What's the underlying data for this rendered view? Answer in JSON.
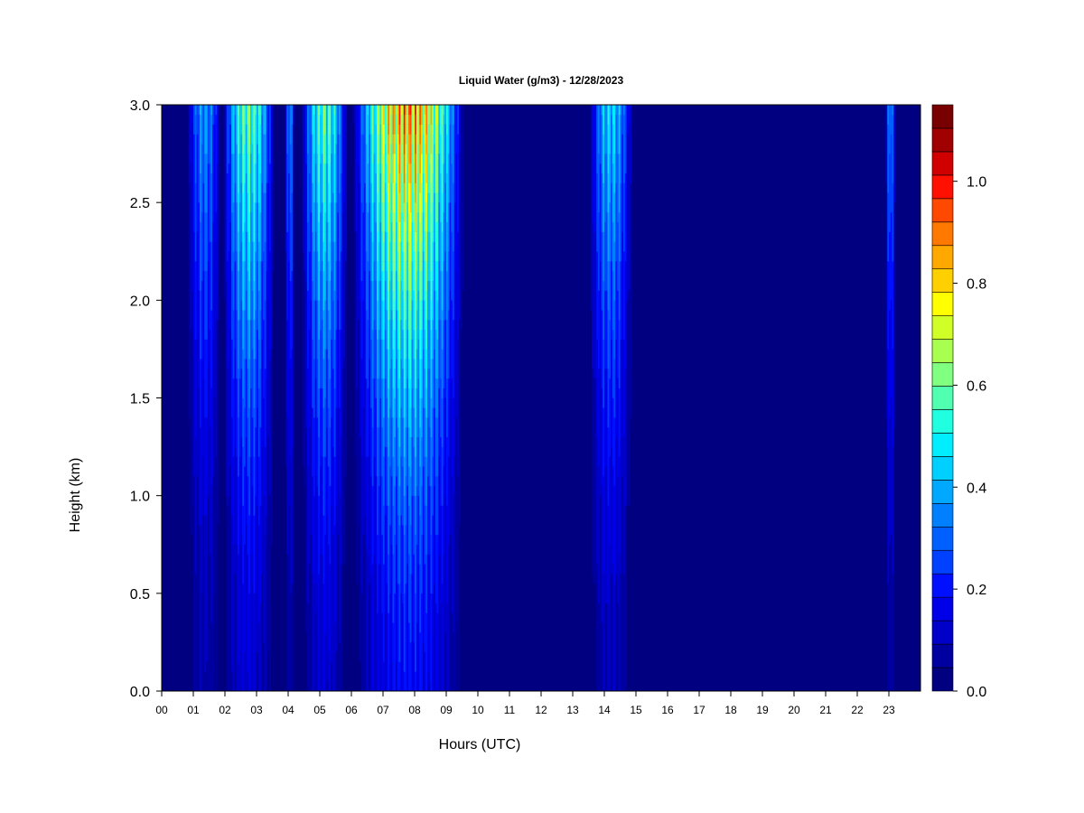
{
  "chart_data": {
    "type": "heatmap",
    "title": "Liquid Water (g/m3) - 12/28/2023",
    "xlabel": "Hours (UTC)",
    "ylabel": "Height (km)",
    "xlim": [
      0,
      24
    ],
    "ylim": [
      0,
      3.0
    ],
    "x_ticks": [
      "00",
      "01",
      "02",
      "03",
      "04",
      "05",
      "06",
      "07",
      "08",
      "09",
      "10",
      "11",
      "12",
      "13",
      "14",
      "15",
      "16",
      "17",
      "18",
      "19",
      "20",
      "21",
      "22",
      "23"
    ],
    "y_ticks": [
      "0.0",
      "0.5",
      "1.0",
      "1.5",
      "2.0",
      "2.5",
      "3.0"
    ],
    "colorbar": {
      "levels_min": 0.0,
      "levels_max": 1.15,
      "step": 0.05,
      "ticks": [
        "0.0",
        "0.2",
        "0.4",
        "0.6",
        "0.8",
        "1.0"
      ],
      "colors": [
        "#000080",
        "#0000A0",
        "#0000C8",
        "#0000E8",
        "#0010FF",
        "#0040FF",
        "#0060FF",
        "#0080FF",
        "#00A8FF",
        "#00D0FF",
        "#00EEFF",
        "#20FFE0",
        "#50FFB0",
        "#80FF80",
        "#A8FF50",
        "#D0FF28",
        "#FFFF00",
        "#FFD000",
        "#FFA800",
        "#FF7800",
        "#FF4800",
        "#FF1000",
        "#D00000",
        "#A00000",
        "#780000"
      ]
    },
    "features": [
      {
        "time": [
          0.8,
          1.9
        ],
        "top_height_km": 3.0,
        "peak": 0.45,
        "description_level": "moderate"
      },
      {
        "time": [
          1.9,
          3.6
        ],
        "top_height_km": 3.0,
        "peak": 0.72
      },
      {
        "time": [
          3.9,
          4.2
        ],
        "top_height_km": 3.0,
        "peak": 0.45
      },
      {
        "time": [
          4.4,
          5.9
        ],
        "top_height_km": 3.0,
        "peak": 0.7
      },
      {
        "time": [
          6.0,
          9.6
        ],
        "top_height_km": 3.0,
        "peak": 1.05
      },
      {
        "time": [
          13.5,
          14.9
        ],
        "top_height_km": 3.0,
        "peak": 0.55
      },
      {
        "time": [
          22.9,
          23.2
        ],
        "top_height_km": 3.0,
        "peak": 0.45
      }
    ]
  }
}
